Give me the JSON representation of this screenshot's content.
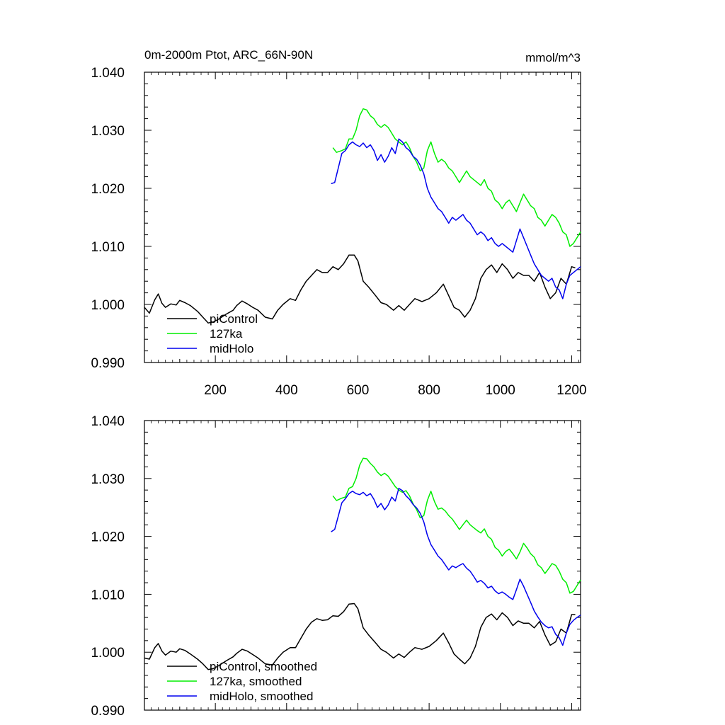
{
  "figure": {
    "title_left": "0m-2000m Ptot, ARC_66N-90N",
    "title_right": "mmol/m^3"
  },
  "chart_data": [
    {
      "type": "line",
      "title": "0m-2000m Ptot, ARC_66N-90N",
      "units": "mmol/m^3",
      "xlim": [
        1,
        1225
      ],
      "ylim": [
        0.99,
        1.04
      ],
      "x_ticks": [
        200,
        400,
        600,
        800,
        1000,
        1200
      ],
      "x_tick_labels": [
        "200",
        "400",
        "600",
        "800",
        "1000",
        "1200"
      ],
      "y_ticks": [
        0.99,
        1.0,
        1.01,
        1.02,
        1.03,
        1.04
      ],
      "y_tick_labels": [
        "0.990",
        "1.000",
        "1.010",
        "1.020",
        "1.030",
        "1.040"
      ],
      "grid": false,
      "legend_position": "bottom-left",
      "series": [
        {
          "name": "piControl",
          "color": "#000000",
          "x": [
            1,
            15,
            30,
            40,
            50,
            60,
            75,
            90,
            100,
            115,
            130,
            150,
            165,
            180,
            195,
            210,
            230,
            250,
            260,
            275,
            290,
            305,
            320,
            340,
            360,
            375,
            390,
            410,
            425,
            440,
            455,
            470,
            485,
            500,
            515,
            530,
            545,
            560,
            575,
            590,
            600,
            615,
            630,
            650,
            665,
            680,
            700,
            715,
            730,
            745,
            760,
            780,
            800,
            820,
            840,
            855,
            870,
            885,
            900,
            915,
            930,
            945,
            960,
            975,
            990,
            1005,
            1020,
            1035,
            1050,
            1065,
            1080,
            1095,
            1110,
            1125,
            1140,
            1155,
            1170,
            1185,
            1200,
            1210
          ],
          "values": [
            0.9995,
            0.9985,
            1.0008,
            1.0018,
            1.0002,
            0.9995,
            1.0001,
            0.9999,
            1.0007,
            1.0003,
            0.9998,
            0.9988,
            0.9978,
            0.9968,
            0.997,
            0.9975,
            0.9983,
            0.999,
            0.9998,
            1.0006,
            1.0001,
            0.9995,
            0.999,
            0.9978,
            0.9975,
            0.999,
            1.0,
            1.001,
            1.0007,
            1.0025,
            1.004,
            1.005,
            1.006,
            1.0055,
            1.0055,
            1.0065,
            1.006,
            1.007,
            1.0085,
            1.0085,
            1.0075,
            1.004,
            1.003,
            1.0015,
            1.0003,
            1.0,
            0.999,
            0.9998,
            0.999,
            1.0,
            1.001,
            1.0005,
            1.001,
            1.002,
            1.0035,
            1.0015,
            0.9995,
            0.999,
            0.9978,
            0.999,
            1.001,
            1.0045,
            1.006,
            1.0068,
            1.0055,
            1.007,
            1.006,
            1.0045,
            1.0055,
            1.005,
            1.005,
            1.004,
            1.0055,
            1.003,
            1.001,
            1.002,
            1.0045,
            1.0035,
            1.0065,
            1.0063
          ]
        },
        {
          "name": "127ka",
          "color": "#00ee00",
          "x": [
            530,
            540,
            555,
            565,
            575,
            585,
            595,
            605,
            615,
            625,
            635,
            645,
            655,
            665,
            675,
            685,
            695,
            705,
            715,
            725,
            735,
            745,
            755,
            765,
            775,
            785,
            795,
            805,
            815,
            825,
            835,
            845,
            855,
            865,
            875,
            885,
            895,
            905,
            915,
            925,
            935,
            945,
            955,
            965,
            975,
            985,
            995,
            1005,
            1015,
            1025,
            1035,
            1045,
            1055,
            1065,
            1075,
            1085,
            1095,
            1105,
            1115,
            1125,
            1135,
            1145,
            1155,
            1165,
            1175,
            1185,
            1195,
            1205,
            1215,
            1225
          ],
          "values": [
            1.027,
            1.0262,
            1.0265,
            1.0268,
            1.0285,
            1.0285,
            1.03,
            1.0325,
            1.0337,
            1.0335,
            1.0325,
            1.032,
            1.031,
            1.0305,
            1.031,
            1.0305,
            1.0295,
            1.0285,
            1.028,
            1.0275,
            1.028,
            1.027,
            1.0255,
            1.0245,
            1.023,
            1.0235,
            1.0265,
            1.028,
            1.026,
            1.0245,
            1.025,
            1.0245,
            1.0235,
            1.023,
            1.022,
            1.021,
            1.022,
            1.023,
            1.022,
            1.0215,
            1.021,
            1.0205,
            1.0215,
            1.02,
            1.0195,
            1.018,
            1.0175,
            1.0165,
            1.0175,
            1.018,
            1.017,
            1.016,
            1.0175,
            1.019,
            1.018,
            1.017,
            1.0165,
            1.015,
            1.0145,
            1.0135,
            1.0145,
            1.0155,
            1.015,
            1.014,
            1.0125,
            1.012,
            1.01,
            1.0105,
            1.0115,
            1.0125
          ]
        },
        {
          "name": "midHolo",
          "color": "#0000ee",
          "x": [
            525,
            535,
            545,
            555,
            565,
            575,
            585,
            595,
            605,
            615,
            625,
            635,
            645,
            655,
            665,
            675,
            685,
            695,
            705,
            715,
            725,
            735,
            745,
            755,
            765,
            775,
            785,
            795,
            805,
            815,
            825,
            835,
            845,
            855,
            865,
            875,
            885,
            895,
            905,
            915,
            925,
            935,
            945,
            955,
            965,
            975,
            985,
            995,
            1005,
            1015,
            1025,
            1035,
            1045,
            1055,
            1065,
            1075,
            1085,
            1095,
            1105,
            1115,
            1125,
            1135,
            1145,
            1155,
            1165,
            1175,
            1185,
            1195,
            1205,
            1215,
            1225
          ],
          "values": [
            1.0208,
            1.021,
            1.0235,
            1.026,
            1.0265,
            1.0275,
            1.028,
            1.0275,
            1.0272,
            1.0278,
            1.027,
            1.0275,
            1.0265,
            1.0248,
            1.0258,
            1.0245,
            1.0255,
            1.027,
            1.026,
            1.0285,
            1.028,
            1.027,
            1.0265,
            1.0255,
            1.025,
            1.024,
            1.0225,
            1.02,
            1.0185,
            1.0175,
            1.0165,
            1.016,
            1.015,
            1.014,
            1.015,
            1.0145,
            1.015,
            1.0155,
            1.0145,
            1.014,
            1.013,
            1.012,
            1.0125,
            1.012,
            1.011,
            1.0115,
            1.0105,
            1.01,
            1.0105,
            1.01,
            1.0095,
            1.009,
            1.011,
            1.013,
            1.0115,
            1.01,
            1.0085,
            1.007,
            1.006,
            1.005,
            1.0045,
            1.004,
            1.0045,
            1.003,
            1.0025,
            1.001,
            1.0035,
            1.005,
            1.0055,
            1.006,
            1.0065
          ]
        }
      ]
    },
    {
      "type": "line",
      "xlim": [
        1,
        1225
      ],
      "ylim": [
        0.99,
        1.04
      ],
      "x_ticks": [
        200,
        400,
        600,
        800,
        1000,
        1200
      ],
      "y_ticks": [
        0.99,
        1.0,
        1.01,
        1.02,
        1.03,
        1.04
      ],
      "y_tick_labels": [
        "0.990",
        "1.000",
        "1.010",
        "1.020",
        "1.030",
        "1.040"
      ],
      "grid": false,
      "legend_position": "bottom-left",
      "series": [
        {
          "name": "piControl, smoothed",
          "color": "#000000",
          "x": [
            1,
            15,
            30,
            40,
            50,
            60,
            75,
            90,
            100,
            115,
            130,
            150,
            165,
            180,
            195,
            210,
            230,
            250,
            260,
            275,
            290,
            305,
            320,
            340,
            360,
            375,
            390,
            410,
            425,
            440,
            455,
            470,
            485,
            500,
            515,
            530,
            545,
            560,
            575,
            590,
            600,
            615,
            630,
            650,
            665,
            680,
            700,
            715,
            730,
            745,
            760,
            780,
            800,
            820,
            840,
            855,
            870,
            885,
            900,
            915,
            930,
            945,
            960,
            975,
            990,
            1005,
            1020,
            1035,
            1050,
            1065,
            1080,
            1095,
            1110,
            1125,
            1140,
            1155,
            1170,
            1185,
            1200,
            1210
          ],
          "values": [
            0.999,
            0.9988,
            1.0008,
            1.0015,
            1.0002,
            0.9995,
            1.0002,
            1.0,
            1.0006,
            1.0003,
            0.9997,
            0.9988,
            0.998,
            0.997,
            0.9972,
            0.9977,
            0.9985,
            0.9992,
            0.9998,
            1.0005,
            1.0002,
            0.9996,
            0.999,
            0.998,
            0.9978,
            0.999,
            1.0,
            1.0008,
            1.0008,
            1.0024,
            1.004,
            1.0052,
            1.0058,
            1.0055,
            1.0056,
            1.0063,
            1.0062,
            1.007,
            1.0083,
            1.0084,
            1.0075,
            1.0042,
            1.003,
            1.0016,
            1.0005,
            1.0,
            0.999,
            0.9997,
            0.9991,
            1.0,
            1.0008,
            1.0005,
            1.001,
            1.002,
            1.0033,
            1.0016,
            0.9997,
            0.9988,
            0.998,
            0.999,
            1.001,
            1.0043,
            1.006,
            1.0066,
            1.0056,
            1.0068,
            1.006,
            1.0046,
            1.0054,
            1.005,
            1.005,
            1.0042,
            1.0053,
            1.003,
            1.0012,
            1.0018,
            1.004,
            1.0033,
            1.0065,
            1.0065
          ]
        },
        {
          "name": "127ka, smoothed",
          "color": "#00ee00",
          "x": [
            530,
            540,
            555,
            565,
            575,
            585,
            595,
            605,
            615,
            625,
            635,
            645,
            655,
            665,
            675,
            685,
            695,
            705,
            715,
            725,
            735,
            745,
            755,
            765,
            775,
            785,
            795,
            805,
            815,
            825,
            835,
            845,
            855,
            865,
            875,
            885,
            895,
            905,
            915,
            925,
            935,
            945,
            955,
            965,
            975,
            985,
            995,
            1005,
            1015,
            1025,
            1035,
            1045,
            1055,
            1065,
            1075,
            1085,
            1095,
            1105,
            1115,
            1125,
            1135,
            1145,
            1155,
            1165,
            1175,
            1185,
            1195,
            1205,
            1215,
            1225
          ],
          "values": [
            1.027,
            1.0262,
            1.0266,
            1.0268,
            1.0283,
            1.0286,
            1.03,
            1.0323,
            1.0335,
            1.0334,
            1.0326,
            1.032,
            1.0311,
            1.0305,
            1.0309,
            1.0304,
            1.0295,
            1.0286,
            1.028,
            1.0276,
            1.0279,
            1.027,
            1.0256,
            1.0246,
            1.0232,
            1.0236,
            1.0262,
            1.0278,
            1.026,
            1.0247,
            1.0249,
            1.0244,
            1.0236,
            1.023,
            1.0221,
            1.0212,
            1.022,
            1.0228,
            1.022,
            1.0215,
            1.021,
            1.0206,
            1.0213,
            1.02,
            1.0195,
            1.0181,
            1.0176,
            1.0166,
            1.0174,
            1.0178,
            1.017,
            1.0161,
            1.0173,
            1.0188,
            1.018,
            1.017,
            1.0164,
            1.0151,
            1.0146,
            1.0136,
            1.0144,
            1.0153,
            1.015,
            1.014,
            1.0126,
            1.012,
            1.0102,
            1.0105,
            1.0115,
            1.0125
          ]
        },
        {
          "name": "midHolo, smoothed",
          "color": "#0000ee",
          "x": [
            525,
            535,
            545,
            555,
            565,
            575,
            585,
            595,
            605,
            615,
            625,
            635,
            645,
            655,
            665,
            675,
            685,
            695,
            705,
            715,
            725,
            735,
            745,
            755,
            765,
            775,
            785,
            795,
            805,
            815,
            825,
            835,
            845,
            855,
            865,
            875,
            885,
            895,
            905,
            915,
            925,
            935,
            945,
            955,
            965,
            975,
            985,
            995,
            1005,
            1015,
            1025,
            1035,
            1045,
            1055,
            1065,
            1075,
            1085,
            1095,
            1105,
            1115,
            1125,
            1135,
            1145,
            1155,
            1165,
            1175,
            1185,
            1195,
            1205,
            1215,
            1225
          ],
          "values": [
            1.0208,
            1.0212,
            1.0235,
            1.0258,
            1.0265,
            1.0274,
            1.0278,
            1.0274,
            1.0272,
            1.0276,
            1.027,
            1.0274,
            1.0264,
            1.025,
            1.0257,
            1.0246,
            1.0254,
            1.0268,
            1.0261,
            1.0283,
            1.0279,
            1.027,
            1.0264,
            1.0255,
            1.0249,
            1.024,
            1.0225,
            1.0202,
            1.0186,
            1.0176,
            1.0166,
            1.016,
            1.0151,
            1.0142,
            1.0149,
            1.0146,
            1.015,
            1.0153,
            1.0145,
            1.014,
            1.0131,
            1.0121,
            1.0124,
            1.0119,
            1.0111,
            1.0114,
            1.0106,
            1.0101,
            1.0104,
            1.01,
            1.0095,
            1.0091,
            1.0108,
            1.0126,
            1.0114,
            1.01,
            1.0086,
            1.0071,
            1.0061,
            1.0052,
            1.0046,
            1.0042,
            1.0044,
            1.0031,
            1.0025,
            1.0012,
            1.0033,
            1.0048,
            1.0055,
            1.006,
            1.0064
          ]
        }
      ]
    }
  ]
}
